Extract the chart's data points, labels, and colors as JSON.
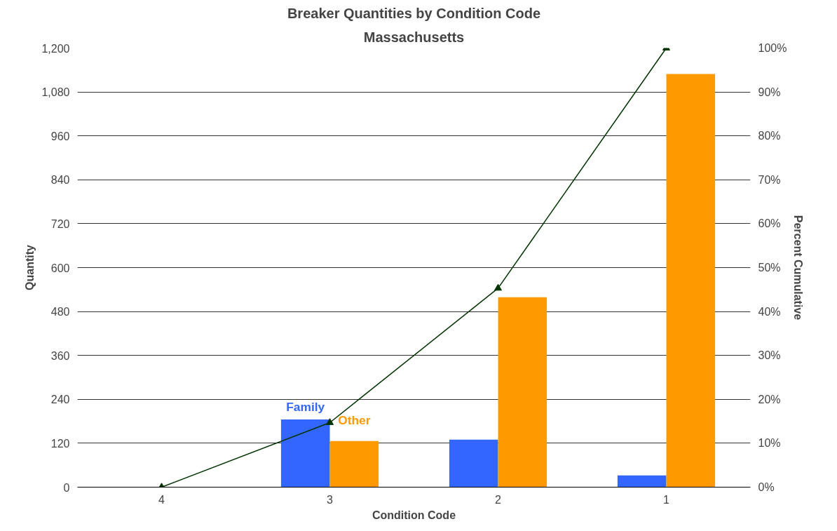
{
  "chart_data": {
    "type": "bar",
    "title": "Breaker Quantities by Condition Code",
    "subtitle": "Massachusetts",
    "xlabel": "Condition Code",
    "ylabel": "Quantity",
    "y2label": "Percent Cumulative",
    "categories": [
      "4",
      "3",
      "2",
      "1"
    ],
    "series": [
      {
        "name": "Family",
        "color": "#3366ff",
        "values": [
          0,
          185,
          130,
          32
        ]
      },
      {
        "name": "Other",
        "color": "#ff9900",
        "values": [
          0,
          126,
          519,
          1129
        ]
      },
      {
        "type": "line",
        "axis": "y2",
        "color": "#003300",
        "marker": "triangle",
        "values": [
          0,
          14.7,
          45.3,
          100
        ]
      }
    ],
    "ylim": [
      0,
      1200
    ],
    "yticks": [
      0,
      120,
      240,
      360,
      480,
      600,
      720,
      840,
      960,
      {
        "value": 1080,
        "label": "1,080"
      },
      {
        "value": 1200,
        "label": "1,200"
      }
    ],
    "y2lim": [
      0,
      100
    ],
    "y2ticks": [
      {
        "value": 0,
        "label": "0%"
      },
      {
        "value": 10,
        "label": "10%"
      },
      {
        "value": 20,
        "label": "20%"
      },
      {
        "value": 30,
        "label": "30%"
      },
      {
        "value": 40,
        "label": "40%"
      },
      {
        "value": 50,
        "label": "50%"
      },
      {
        "value": 60,
        "label": "60%"
      },
      {
        "value": 70,
        "label": "70%"
      },
      {
        "value": 80,
        "label": "80%"
      },
      {
        "value": 90,
        "label": "90%"
      },
      {
        "value": 100,
        "label": "100%"
      }
    ],
    "grid": "y"
  }
}
